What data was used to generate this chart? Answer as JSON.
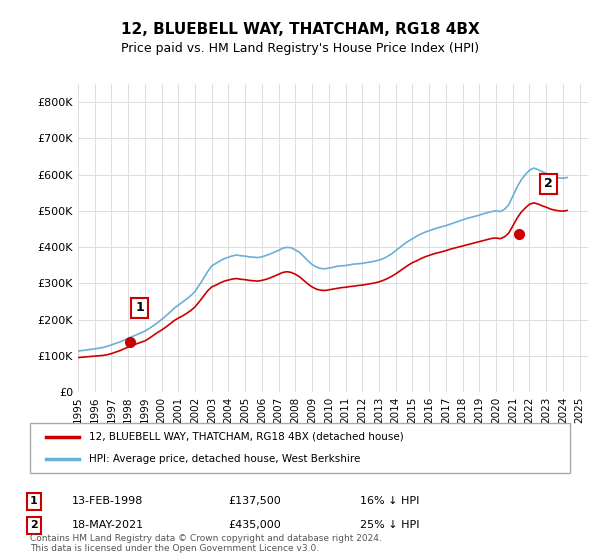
{
  "title": "12, BLUEBELL WAY, THATCHAM, RG18 4BX",
  "subtitle": "Price paid vs. HM Land Registry's House Price Index (HPI)",
  "legend_line1": "12, BLUEBELL WAY, THATCHAM, RG18 4BX (detached house)",
  "legend_line2": "HPI: Average price, detached house, West Berkshire",
  "annotation1_label": "1",
  "annotation1_date": "13-FEB-1998",
  "annotation1_price": "£137,500",
  "annotation1_hpi": "16% ↓ HPI",
  "annotation2_label": "2",
  "annotation2_date": "18-MAY-2021",
  "annotation2_price": "£435,000",
  "annotation2_hpi": "25% ↓ HPI",
  "footer": "Contains HM Land Registry data © Crown copyright and database right 2024.\nThis data is licensed under the Open Government Licence v3.0.",
  "hpi_color": "#6baed6",
  "price_color": "#cc0000",
  "annotation_color": "#cc0000",
  "background_color": "#ffffff",
  "grid_color": "#dddddd",
  "ylim": [
    0,
    850000
  ],
  "yticks": [
    0,
    100000,
    200000,
    300000,
    400000,
    500000,
    600000,
    700000,
    800000
  ],
  "ylabel_prefix": "£",
  "sale1_x": 1998.12,
  "sale1_y": 137500,
  "sale2_x": 2021.38,
  "sale2_y": 435000,
  "hpi_years": [
    1995.0,
    1995.25,
    1995.5,
    1995.75,
    1996.0,
    1996.25,
    1996.5,
    1996.75,
    1997.0,
    1997.25,
    1997.5,
    1997.75,
    1998.0,
    1998.25,
    1998.5,
    1998.75,
    1999.0,
    1999.25,
    1999.5,
    1999.75,
    2000.0,
    2000.25,
    2000.5,
    2000.75,
    2001.0,
    2001.25,
    2001.5,
    2001.75,
    2002.0,
    2002.25,
    2002.5,
    2002.75,
    2003.0,
    2003.25,
    2003.5,
    2003.75,
    2004.0,
    2004.25,
    2004.5,
    2004.75,
    2005.0,
    2005.25,
    2005.5,
    2005.75,
    2006.0,
    2006.25,
    2006.5,
    2006.75,
    2007.0,
    2007.25,
    2007.5,
    2007.75,
    2008.0,
    2008.25,
    2008.5,
    2008.75,
    2009.0,
    2009.25,
    2009.5,
    2009.75,
    2010.0,
    2010.25,
    2010.5,
    2010.75,
    2011.0,
    2011.25,
    2011.5,
    2011.75,
    2012.0,
    2012.25,
    2012.5,
    2012.75,
    2013.0,
    2013.25,
    2013.5,
    2013.75,
    2014.0,
    2014.25,
    2014.5,
    2014.75,
    2015.0,
    2015.25,
    2015.5,
    2015.75,
    2016.0,
    2016.25,
    2016.5,
    2016.75,
    2017.0,
    2017.25,
    2017.5,
    2017.75,
    2018.0,
    2018.25,
    2018.5,
    2018.75,
    2019.0,
    2019.25,
    2019.5,
    2019.75,
    2020.0,
    2020.25,
    2020.5,
    2020.75,
    2021.0,
    2021.25,
    2021.5,
    2021.75,
    2022.0,
    2022.25,
    2022.5,
    2022.75,
    2023.0,
    2023.25,
    2023.5,
    2023.75,
    2024.0,
    2024.25
  ],
  "hpi_values": [
    113000,
    114500,
    116000,
    117500,
    119000,
    121000,
    123000,
    126000,
    130000,
    134000,
    138000,
    143000,
    148000,
    153000,
    158000,
    163000,
    168000,
    175000,
    183000,
    191000,
    200000,
    210000,
    220000,
    231000,
    240000,
    248000,
    257000,
    266000,
    278000,
    295000,
    313000,
    332000,
    348000,
    355000,
    362000,
    368000,
    372000,
    376000,
    378000,
    376000,
    375000,
    373000,
    372000,
    371000,
    373000,
    377000,
    381000,
    386000,
    391000,
    397000,
    399000,
    398000,
    392000,
    385000,
    374000,
    362000,
    352000,
    345000,
    341000,
    340000,
    342000,
    344000,
    347000,
    348000,
    349000,
    351000,
    353000,
    354000,
    355000,
    357000,
    359000,
    361000,
    364000,
    368000,
    374000,
    381000,
    390000,
    399000,
    408000,
    416000,
    423000,
    430000,
    436000,
    441000,
    445000,
    449000,
    453000,
    456000,
    459000,
    463000,
    467000,
    471000,
    475000,
    479000,
    482000,
    485000,
    488000,
    492000,
    495000,
    498000,
    500000,
    498000,
    504000,
    516000,
    540000,
    565000,
    585000,
    600000,
    612000,
    618000,
    614000,
    608000,
    603000,
    598000,
    594000,
    591000,
    590000,
    592000
  ],
  "price_years": [
    1995.0,
    1995.25,
    1995.5,
    1995.75,
    1996.0,
    1996.25,
    1996.5,
    1996.75,
    1997.0,
    1997.25,
    1997.5,
    1997.75,
    1998.0,
    1998.25,
    1998.5,
    1998.75,
    1999.0,
    1999.25,
    1999.5,
    1999.75,
    2000.0,
    2000.25,
    2000.5,
    2000.75,
    2001.0,
    2001.25,
    2001.5,
    2001.75,
    2002.0,
    2002.25,
    2002.5,
    2002.75,
    2003.0,
    2003.25,
    2003.5,
    2003.75,
    2004.0,
    2004.25,
    2004.5,
    2004.75,
    2005.0,
    2005.25,
    2005.5,
    2005.75,
    2006.0,
    2006.25,
    2006.5,
    2006.75,
    2007.0,
    2007.25,
    2007.5,
    2007.75,
    2008.0,
    2008.25,
    2008.5,
    2008.75,
    2009.0,
    2009.25,
    2009.5,
    2009.75,
    2010.0,
    2010.25,
    2010.5,
    2010.75,
    2011.0,
    2011.25,
    2011.5,
    2011.75,
    2012.0,
    2012.25,
    2012.5,
    2012.75,
    2013.0,
    2013.25,
    2013.5,
    2013.75,
    2014.0,
    2014.25,
    2014.5,
    2014.75,
    2015.0,
    2015.25,
    2015.5,
    2015.75,
    2016.0,
    2016.25,
    2016.5,
    2016.75,
    2017.0,
    2017.25,
    2017.5,
    2017.75,
    2018.0,
    2018.25,
    2018.5,
    2018.75,
    2019.0,
    2019.25,
    2019.5,
    2019.75,
    2020.0,
    2020.25,
    2020.5,
    2020.75,
    2021.0,
    2021.25,
    2021.5,
    2021.75,
    2022.0,
    2022.25,
    2022.5,
    2022.75,
    2023.0,
    2023.25,
    2023.5,
    2023.75,
    2024.0,
    2024.25
  ],
  "price_values": [
    95000,
    96000,
    97000,
    98000,
    99000,
    100000,
    101000,
    103000,
    106000,
    110000,
    114000,
    119000,
    124000,
    128000,
    133000,
    137000,
    141000,
    148000,
    156000,
    164000,
    171000,
    179000,
    188000,
    197000,
    204000,
    210000,
    217000,
    225000,
    235000,
    249000,
    264000,
    279000,
    290000,
    295000,
    301000,
    306000,
    309000,
    312000,
    313000,
    311000,
    310000,
    308000,
    307000,
    306000,
    308000,
    311000,
    315000,
    320000,
    325000,
    330000,
    332000,
    330000,
    325000,
    318000,
    308000,
    298000,
    290000,
    284000,
    281000,
    280000,
    282000,
    284000,
    286000,
    288000,
    289000,
    291000,
    292000,
    294000,
    295000,
    297000,
    299000,
    301000,
    304000,
    308000,
    313000,
    319000,
    326000,
    334000,
    342000,
    350000,
    357000,
    362000,
    368000,
    373000,
    377000,
    381000,
    384000,
    387000,
    390000,
    394000,
    397000,
    400000,
    403000,
    406000,
    409000,
    412000,
    415000,
    418000,
    421000,
    424000,
    425000,
    423000,
    428000,
    438000,
    458000,
    479000,
    496000,
    508000,
    518000,
    522000,
    519000,
    514000,
    510000,
    505000,
    502000,
    500000,
    499000,
    501000
  ],
  "xlim": [
    1995,
    2025.5
  ],
  "xtick_years": [
    1995,
    1996,
    1997,
    1998,
    1999,
    2000,
    2001,
    2002,
    2003,
    2004,
    2005,
    2006,
    2007,
    2008,
    2009,
    2010,
    2011,
    2012,
    2013,
    2014,
    2015,
    2016,
    2017,
    2018,
    2019,
    2020,
    2021,
    2022,
    2023,
    2024,
    2025
  ]
}
